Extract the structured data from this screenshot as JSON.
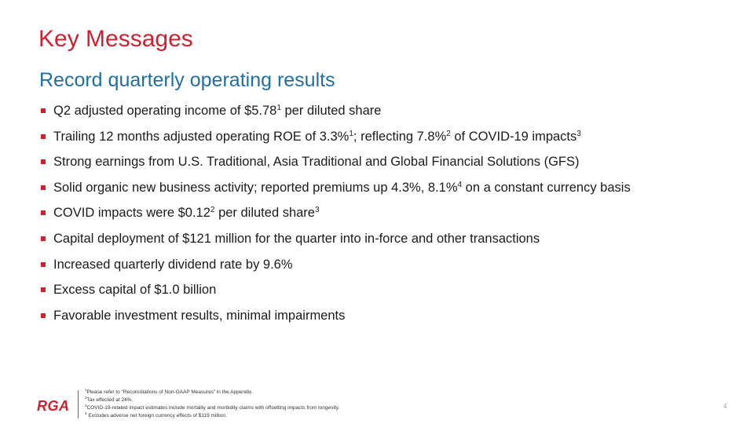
{
  "slide": {
    "title": "Key Messages",
    "subtitle": "Record quarterly operating results",
    "page_number": "4"
  },
  "bullets": [
    {
      "parts": [
        {
          "t": "Q2 adjusted operating income of $5.78"
        },
        {
          "sup": "1"
        },
        {
          "t": " per diluted share"
        }
      ]
    },
    {
      "parts": [
        {
          "t": "Trailing 12 months adjusted operating ROE of 3.3%"
        },
        {
          "sup": "1"
        },
        {
          "t": "; reflecting 7.8%"
        },
        {
          "sup": "2"
        },
        {
          "t": " of COVID-19 impacts"
        },
        {
          "sup": "3"
        }
      ]
    },
    {
      "parts": [
        {
          "t": "Strong earnings from U.S. Traditional, Asia Traditional and Global Financial Solutions (GFS)"
        }
      ]
    },
    {
      "parts": [
        {
          "t": "Solid organic new business activity; reported premiums up 4.3%, 8.1%"
        },
        {
          "sup": "4"
        },
        {
          "t": " on a constant currency basis"
        }
      ]
    },
    {
      "parts": [
        {
          "t": "COVID impacts were $0.12"
        },
        {
          "sup": "2"
        },
        {
          "t": " per diluted share"
        },
        {
          "sup": "3"
        }
      ]
    },
    {
      "parts": [
        {
          "t": "Capital deployment of $121 million for the quarter into in-force and other transactions"
        }
      ]
    },
    {
      "parts": [
        {
          "t": "Increased quarterly dividend rate by 9.6%"
        }
      ]
    },
    {
      "parts": [
        {
          "t": "Excess capital of $1.0 billion"
        }
      ]
    },
    {
      "parts": [
        {
          "t": "Favorable investment results, minimal impairments"
        }
      ]
    }
  ],
  "footer": {
    "logo_text": "RGA",
    "footnotes": [
      {
        "num": "1",
        "text": "Please refer to “Reconciliations of Non-GAAP Measures” in the Appendix."
      },
      {
        "num": "2",
        "text": "Tax effected  at 24%."
      },
      {
        "num": "3",
        "text": "COVID-19-related  impact estimates include mortality and morbidity claims with offsetting impacts from longevity."
      },
      {
        "num": "4",
        "text": " Excludes adverse net foreign currency effects  of $119  million."
      }
    ]
  },
  "colors": {
    "title": "#d0202f",
    "subtitle": "#1f6fa5",
    "bullet_marker": "#d0202f",
    "logo": "#d0202f"
  }
}
